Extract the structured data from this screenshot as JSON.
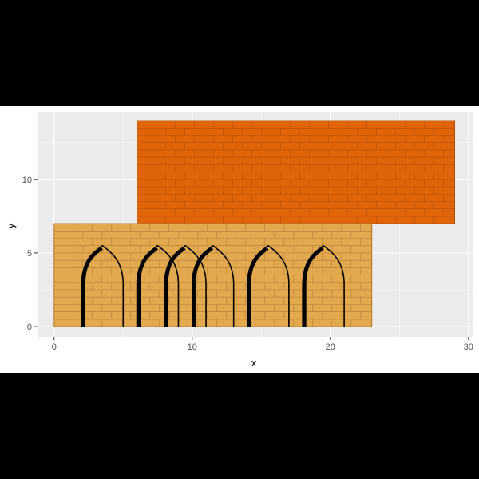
{
  "chart_data": {
    "type": "rect",
    "xlabel": "x",
    "ylabel": "y",
    "xlim": [
      -1.2,
      30.3
    ],
    "ylim": [
      -0.7,
      14.6
    ],
    "x_ticks": [
      0,
      10,
      20,
      30
    ],
    "y_ticks": [
      0,
      5,
      10
    ],
    "grid": true,
    "legend": "none",
    "background_color": "#ebebeb",
    "rects": [
      {
        "xmin": 6,
        "xmax": 29,
        "ymin": 7,
        "ymax": 14,
        "fill": "#e0640a",
        "stroke": "#b84d00"
      },
      {
        "xmin": 0,
        "xmax": 23,
        "ymin": 0,
        "ymax": 7,
        "fill": "#e3a94f",
        "stroke": "#b07a2c"
      }
    ],
    "arches": [
      {
        "xmin": 2,
        "xmax": 5,
        "ymax": 5.5
      },
      {
        "xmin": 6,
        "xmax": 9,
        "ymax": 5.5
      },
      {
        "xmin": 8,
        "xmax": 11,
        "ymax": 5.5
      },
      {
        "xmin": 10,
        "xmax": 13,
        "ymax": 5.5
      },
      {
        "xmin": 14,
        "xmax": 17,
        "ymax": 5.5
      },
      {
        "xmin": 18,
        "xmax": 21,
        "ymax": 5.5
      }
    ],
    "arch_color": "#000000"
  }
}
